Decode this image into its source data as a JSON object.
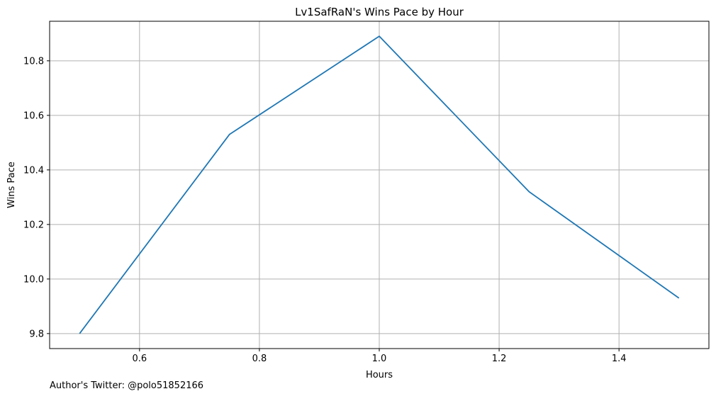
{
  "chart_data": {
    "type": "line",
    "title": "Lv1SafRaN's Wins Pace by Hour",
    "xlabel": "Hours",
    "ylabel": "Wins Pace",
    "x": [
      0.5,
      0.75,
      1.0,
      1.25,
      1.5
    ],
    "series": [
      {
        "values": [
          9.8,
          10.53,
          10.89,
          10.32,
          9.93
        ],
        "color": "#1f77b4"
      }
    ],
    "xlim": [
      0.45,
      1.55
    ],
    "ylim": [
      9.745,
      10.945
    ],
    "xticks": [
      "0.6",
      "0.8",
      "1.0",
      "1.2",
      "1.4"
    ],
    "yticks": [
      "9.8",
      "10.0",
      "10.2",
      "10.4",
      "10.6",
      "10.8"
    ],
    "grid": true,
    "legend": "none"
  },
  "footnote": "Author's Twitter: @polo51852166",
  "colors": {
    "line": "#1f77b4",
    "grid": "#b0b0b0",
    "axes": "#000000",
    "background": "#ffffff"
  }
}
